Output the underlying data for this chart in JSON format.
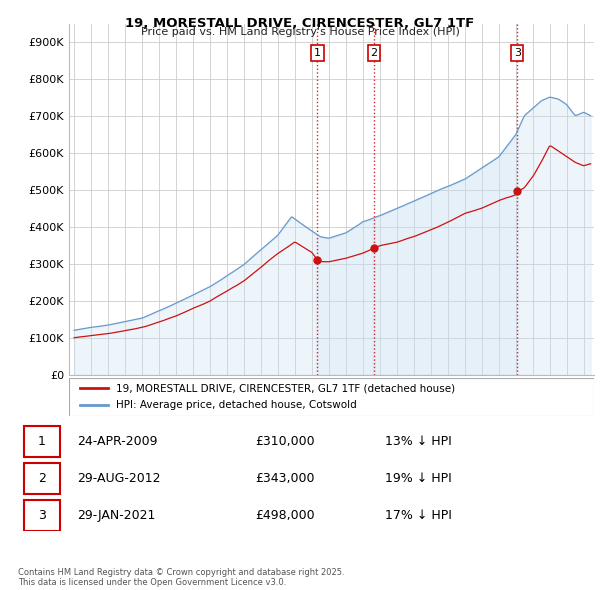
{
  "title": "19, MORESTALL DRIVE, CIRENCESTER, GL7 1TF",
  "subtitle": "Price paid vs. HM Land Registry's House Price Index (HPI)",
  "ylim": [
    0,
    950000
  ],
  "yticks": [
    0,
    100000,
    200000,
    300000,
    400000,
    500000,
    600000,
    700000,
    800000,
    900000
  ],
  "ytick_labels": [
    "£0",
    "£100K",
    "£200K",
    "£300K",
    "£400K",
    "£500K",
    "£600K",
    "£700K",
    "£800K",
    "£900K"
  ],
  "sale_date_nums": [
    2009.31,
    2012.66,
    2021.08
  ],
  "sale_prices": [
    310000,
    343000,
    498000
  ],
  "sale_labels": [
    "1",
    "2",
    "3"
  ],
  "vline_color": "#cc0000",
  "legend_entries": [
    "19, MORESTALL DRIVE, CIRENCESTER, GL7 1TF (detached house)",
    "HPI: Average price, detached house, Cotswold"
  ],
  "line_color_red": "#cc1111",
  "line_color_blue": "#6699cc",
  "fill_color_blue": "#c8dff0",
  "table_rows": [
    [
      "1",
      "24-APR-2009",
      "£310,000",
      "13% ↓ HPI"
    ],
    [
      "2",
      "29-AUG-2012",
      "£343,000",
      "19% ↓ HPI"
    ],
    [
      "3",
      "29-JAN-2021",
      "£498,000",
      "17% ↓ HPI"
    ]
  ],
  "footnote": "Contains HM Land Registry data © Crown copyright and database right 2025.\nThis data is licensed under the Open Government Licence v3.0.",
  "grid_color": "#cccccc",
  "bg_color": "#f0f4f8"
}
